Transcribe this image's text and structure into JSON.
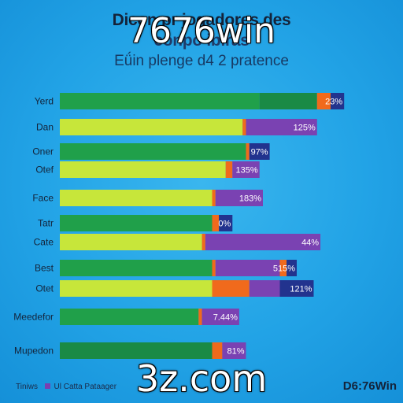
{
  "title_line1": "Dicon pr jogadores des",
  "title_line2": "conpo ibiras",
  "subtitle": "Eǘin plenge d4 2 pratence",
  "watermark_top": "7676win",
  "watermark_bottom": "3z.com",
  "footer_legend_text": "Tiniws",
  "footer_legend_item": "Ul Catta Pataager",
  "footer_brand": "D6:76Win",
  "colors": {
    "dark_green": "#20a04a",
    "lime": "#c7e63a",
    "orange": "#f06a1c",
    "purple": "#7a42b2",
    "navy": "#22338e",
    "label_bg": "#ffffff"
  },
  "chart_data": {
    "type": "bar",
    "orientation": "horizontal",
    "stacked": true,
    "x_range": [
      0,
      100
    ],
    "rows": [
      {
        "label": "Yerd",
        "style": "dark_green",
        "segments": [
          {
            "c": "dark_green",
            "v": 59
          },
          {
            "c": "dark_green_dark",
            "v": 17
          },
          {
            "c": "orange",
            "v": 4
          },
          {
            "c": "navy",
            "v": 4
          }
        ],
        "value_label": "23%"
      },
      {
        "label": "Dan",
        "style": "lime",
        "segments": [
          {
            "c": "lime",
            "v": 54
          },
          {
            "c": "orange",
            "v": 1
          },
          {
            "c": "purple",
            "v": 21
          }
        ],
        "value_label": "125%"
      },
      {
        "label": "Oner",
        "style": "dark_green",
        "segments": [
          {
            "c": "dark_green",
            "v": 55
          },
          {
            "c": "orange",
            "v": 1
          },
          {
            "c": "navy",
            "v": 6
          }
        ],
        "value_label": "97%"
      },
      {
        "label": "Otef",
        "style": "lime",
        "segments": [
          {
            "c": "lime",
            "v": 49
          },
          {
            "c": "orange",
            "v": 2
          },
          {
            "c": "purple",
            "v": 8
          }
        ],
        "value_label": "135%"
      },
      {
        "label": "Face",
        "style": "lime",
        "segments": [
          {
            "c": "lime",
            "v": 45
          },
          {
            "c": "orange",
            "v": 1
          },
          {
            "c": "purple",
            "v": 14
          }
        ],
        "value_label": "183%"
      },
      {
        "label": "Tatr",
        "style": "dark_green",
        "segments": [
          {
            "c": "dark_green",
            "v": 45
          },
          {
            "c": "orange",
            "v": 2
          },
          {
            "c": "navy",
            "v": 4
          }
        ],
        "value_label": "0%"
      },
      {
        "label": "Cate",
        "style": "lime",
        "segments": [
          {
            "c": "lime",
            "v": 42
          },
          {
            "c": "orange",
            "v": 1
          },
          {
            "c": "purple",
            "v": 34
          }
        ],
        "value_label": "44%"
      },
      {
        "label": "Best",
        "style": "dark_green",
        "segments": [
          {
            "c": "dark_green",
            "v": 45
          },
          {
            "c": "orange",
            "v": 1
          },
          {
            "c": "purple",
            "v": 19
          },
          {
            "c": "orange",
            "v": 2
          },
          {
            "c": "navy",
            "v": 3
          }
        ],
        "value_label": "515%"
      },
      {
        "label": "Otet",
        "style": "lime",
        "segments": [
          {
            "c": "lime",
            "v": 45
          },
          {
            "c": "orange",
            "v": 11
          },
          {
            "c": "purple",
            "v": 9
          },
          {
            "c": "navy",
            "v": 10
          }
        ],
        "value_label": "121%"
      },
      {
        "label": "Meedefor",
        "style": "dark_green",
        "segments": [
          {
            "c": "dark_green",
            "v": 41
          },
          {
            "c": "orange",
            "v": 1
          },
          {
            "c": "purple",
            "v": 11
          }
        ],
        "value_label": "7.44%"
      },
      {
        "label": "Mupedon",
        "style": "dark_green",
        "segments": [
          {
            "c": "dark_green_dark",
            "v": 45
          },
          {
            "c": "orange",
            "v": 3
          },
          {
            "c": "purple",
            "v": 7
          }
        ],
        "value_label": "81%"
      }
    ]
  }
}
